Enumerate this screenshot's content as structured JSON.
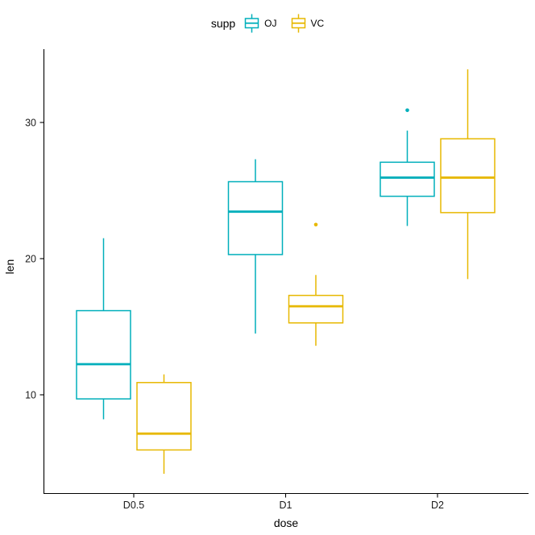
{
  "chart_data": {
    "type": "boxplot",
    "title": "",
    "xlabel": "dose",
    "ylabel": "len",
    "categories": [
      "D0.5",
      "D1",
      "D2"
    ],
    "y_ticks": [
      10,
      20,
      30
    ],
    "ylim": [
      2.7,
      35.4
    ],
    "grid": "off",
    "legend": {
      "title": "supp",
      "position": "top",
      "entries": [
        {
          "label": "OJ",
          "color": "#00AFBB"
        },
        {
          "label": "VC",
          "color": "#E7B800"
        }
      ]
    },
    "series": [
      {
        "name": "OJ",
        "color": "#00AFBB",
        "boxes": [
          {
            "category": "D0.5",
            "whisker_low": 8.2,
            "q1": 9.7,
            "median": 12.25,
            "q3": 16.18,
            "whisker_high": 21.5,
            "outliers": []
          },
          {
            "category": "D1",
            "whisker_low": 14.5,
            "q1": 20.3,
            "median": 23.45,
            "q3": 25.65,
            "whisker_high": 27.3,
            "outliers": []
          },
          {
            "category": "D2",
            "whisker_low": 22.4,
            "q1": 24.58,
            "median": 25.95,
            "q3": 27.08,
            "whisker_high": 29.4,
            "outliers": [
              30.9
            ]
          }
        ]
      },
      {
        "name": "VC",
        "color": "#E7B800",
        "boxes": [
          {
            "category": "D0.5",
            "whisker_low": 4.2,
            "q1": 5.95,
            "median": 7.15,
            "q3": 10.9,
            "whisker_high": 11.5,
            "outliers": []
          },
          {
            "category": "D1",
            "whisker_low": 13.6,
            "q1": 15.28,
            "median": 16.5,
            "q3": 17.3,
            "whisker_high": 18.8,
            "outliers": [
              22.5
            ]
          },
          {
            "category": "D2",
            "whisker_low": 18.5,
            "q1": 23.38,
            "median": 25.95,
            "q3": 28.8,
            "whisker_high": 33.9,
            "outliers": []
          }
        ]
      }
    ]
  }
}
